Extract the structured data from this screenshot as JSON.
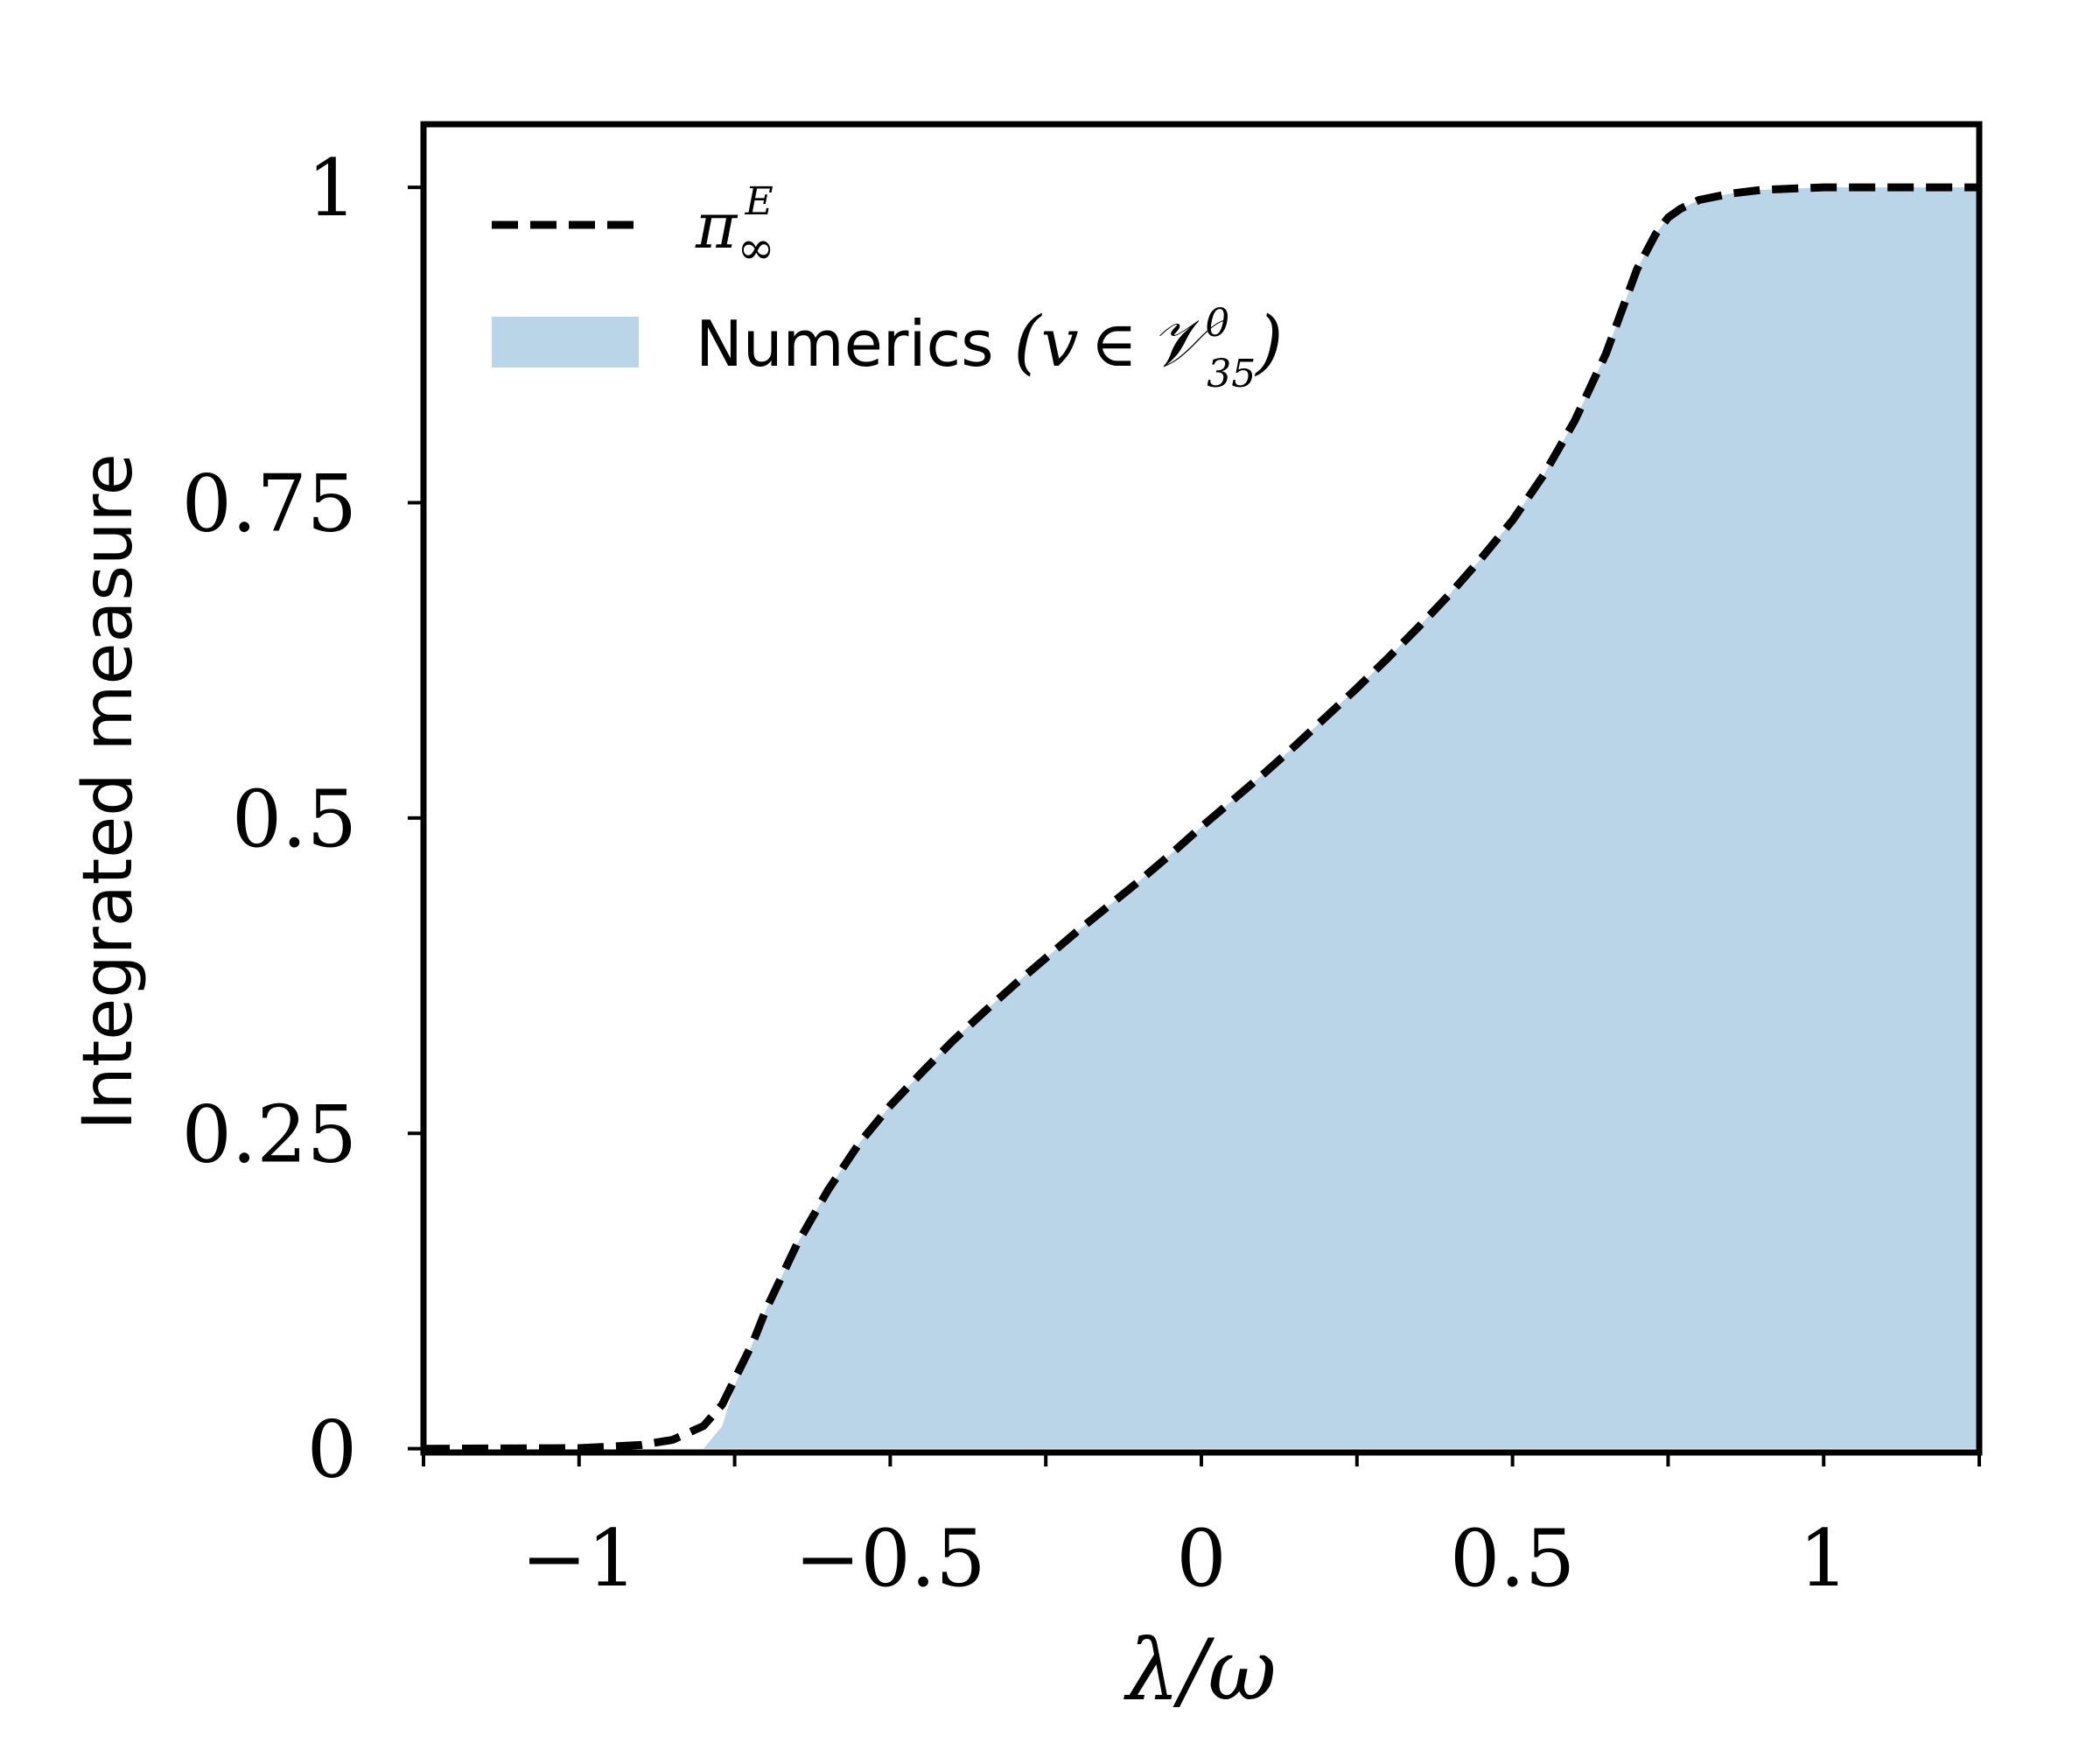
{
  "chart_data": {
    "type": "area",
    "xlabel": "λ/ω",
    "ylabel": "Integrated measure",
    "xlim": [
      -1.25,
      1.25
    ],
    "ylim": [
      -0.003,
      1.05
    ],
    "xticks": [
      -1,
      -0.5,
      0,
      0.5,
      1
    ],
    "xtick_labels": [
      "−1",
      "−0.5",
      "0",
      "0.5",
      "1"
    ],
    "yticks": [
      0,
      0.25,
      0.5,
      0.75,
      1
    ],
    "ytick_labels": [
      "0",
      "0.25",
      "0.5",
      "0.75",
      "1"
    ],
    "grid": false,
    "legend_position": "top-left",
    "series": [
      {
        "name": "π∞E",
        "name_parts": {
          "base": "π",
          "sub": "∞",
          "sup": "E"
        },
        "style": "dashed",
        "color": "#000000",
        "x": [
          -1.25,
          -1.0,
          -0.9,
          -0.85,
          -0.8,
          -0.77,
          -0.75,
          -0.72,
          -0.7,
          -0.65,
          -0.6,
          -0.55,
          -0.5,
          -0.45,
          -0.4,
          -0.35,
          -0.3,
          -0.25,
          -0.2,
          -0.15,
          -0.1,
          -0.05,
          0.0,
          0.05,
          0.1,
          0.15,
          0.2,
          0.25,
          0.3,
          0.35,
          0.4,
          0.45,
          0.5,
          0.55,
          0.6,
          0.65,
          0.7,
          0.73,
          0.75,
          0.77,
          0.8,
          0.85,
          0.9,
          0.95,
          1.0,
          1.1,
          1.25
        ],
        "values": [
          0.0,
          0.0005,
          0.003,
          0.007,
          0.018,
          0.035,
          0.055,
          0.085,
          0.11,
          0.162,
          0.205,
          0.242,
          0.272,
          0.298,
          0.323,
          0.346,
          0.368,
          0.389,
          0.41,
          0.43,
          0.45,
          0.471,
          0.493,
          0.514,
          0.535,
          0.557,
          0.58,
          0.603,
          0.627,
          0.652,
          0.678,
          0.706,
          0.736,
          0.772,
          0.815,
          0.868,
          0.935,
          0.963,
          0.976,
          0.983,
          0.99,
          0.995,
          0.998,
          0.999,
          1.0,
          1.0,
          1.0
        ]
      },
      {
        "name": "Numerics (v ∈ 𝒱⁰₃₅)",
        "name_parts": {
          "text": "Numerics ",
          "math_open": "(",
          "v": "v",
          "in": "∈",
          "V": "𝒱",
          "sup": "0",
          "sub": "35",
          "math_close": ")"
        },
        "style": "filled",
        "color": "#bad4e8",
        "x": [
          -1.25,
          -1.0,
          -0.9,
          -0.85,
          -0.8,
          -0.77,
          -0.75,
          -0.72,
          -0.7,
          -0.65,
          -0.6,
          -0.55,
          -0.5,
          -0.45,
          -0.4,
          -0.35,
          -0.3,
          -0.25,
          -0.2,
          -0.15,
          -0.1,
          -0.05,
          0.0,
          0.05,
          0.1,
          0.15,
          0.2,
          0.25,
          0.3,
          0.35,
          0.4,
          0.45,
          0.5,
          0.55,
          0.6,
          0.65,
          0.7,
          0.73,
          0.75,
          0.77,
          0.8,
          0.85,
          0.9,
          0.95,
          1.0,
          1.1,
          1.25
        ],
        "values": [
          0.0,
          0.0,
          0.0,
          0.0,
          0.0,
          0.018,
          0.05,
          0.085,
          0.11,
          0.162,
          0.205,
          0.242,
          0.272,
          0.298,
          0.323,
          0.346,
          0.368,
          0.389,
          0.41,
          0.43,
          0.45,
          0.471,
          0.493,
          0.514,
          0.535,
          0.557,
          0.58,
          0.603,
          0.627,
          0.652,
          0.678,
          0.706,
          0.736,
          0.772,
          0.815,
          0.868,
          0.935,
          0.963,
          0.976,
          0.983,
          0.99,
          0.995,
          0.998,
          0.999,
          1.0,
          1.0,
          1.0
        ]
      }
    ]
  }
}
